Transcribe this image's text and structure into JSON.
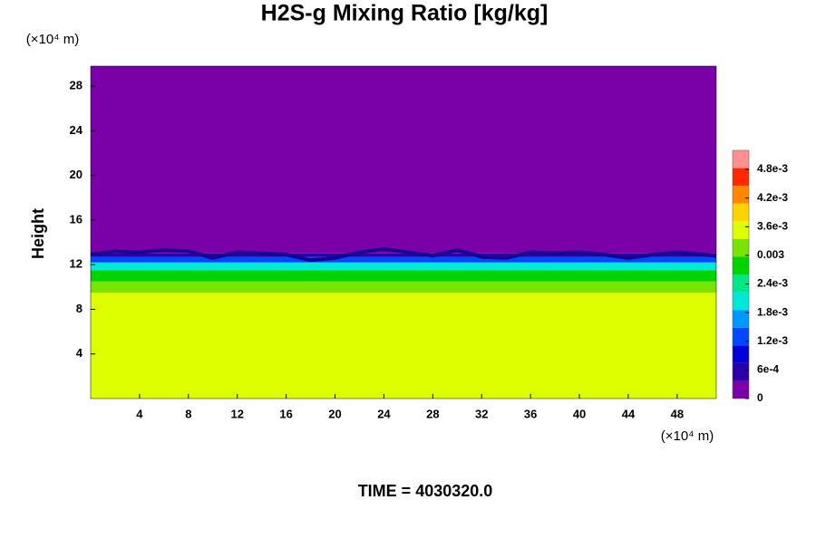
{
  "chart_data": {
    "type": "heatmap",
    "title": "H2S-g Mixing Ratio [kg/kg]",
    "x_unit": "(×10⁴ m)",
    "y_unit": "(×10⁴ m)",
    "ylabel": "Height",
    "footer": "TIME = 4030320.0",
    "xlim": [
      0,
      51.2
    ],
    "ylim": [
      0,
      29.8
    ],
    "xticks": [
      4,
      8,
      12,
      16,
      20,
      24,
      28,
      32,
      36,
      40,
      44,
      48
    ],
    "yticks": [
      4,
      8,
      12,
      16,
      20,
      24,
      28
    ],
    "heights": [
      0,
      9.5,
      10.5,
      11.5,
      12.2,
      12.7,
      13.0,
      29.8
    ],
    "values": [
      0.0036,
      0.003,
      0.0026,
      0.002,
      0.0013,
      0.0005,
      0
    ],
    "interface": {
      "x": [
        0,
        2,
        4,
        6,
        8,
        10,
        12,
        14,
        16,
        18,
        20,
        22,
        24,
        26,
        28,
        30,
        32,
        34,
        36,
        38,
        40,
        42,
        44,
        46,
        48,
        51.2
      ],
      "height": [
        12.9,
        13.2,
        13.1,
        13.3,
        13.2,
        12.6,
        13.1,
        13.0,
        12.9,
        12.4,
        12.6,
        13.1,
        13.4,
        13.1,
        12.8,
        13.3,
        12.7,
        12.6,
        13.1,
        13.0,
        13.1,
        12.9,
        12.6,
        12.9,
        13.1,
        12.8
      ]
    },
    "interface_color": "#1a0090",
    "clim": [
      0,
      0.0052
    ],
    "colors": [
      "#7a00a8",
      "#2a00a8",
      "#0000d8",
      "#0048ff",
      "#0098ff",
      "#00e8d8",
      "#00e888",
      "#00d400",
      "#78e400",
      "#ddff00",
      "#ffd400",
      "#ff8800",
      "#ff2800",
      "#ff9090"
    ],
    "cticks": [
      0,
      {
        "value": 0.0006,
        "label": "6e-4"
      },
      {
        "value": 0.0012,
        "label": "1.2e-3"
      },
      {
        "value": 0.0018,
        "label": "1.8e-3"
      },
      {
        "value": 0.0024,
        "label": "2.4e-3"
      },
      0.003,
      {
        "value": 0.0036,
        "label": "3.6e-3"
      },
      {
        "value": 0.0042,
        "label": "4.2e-3"
      },
      {
        "value": 0.0048,
        "label": "4.8e-3"
      }
    ]
  }
}
